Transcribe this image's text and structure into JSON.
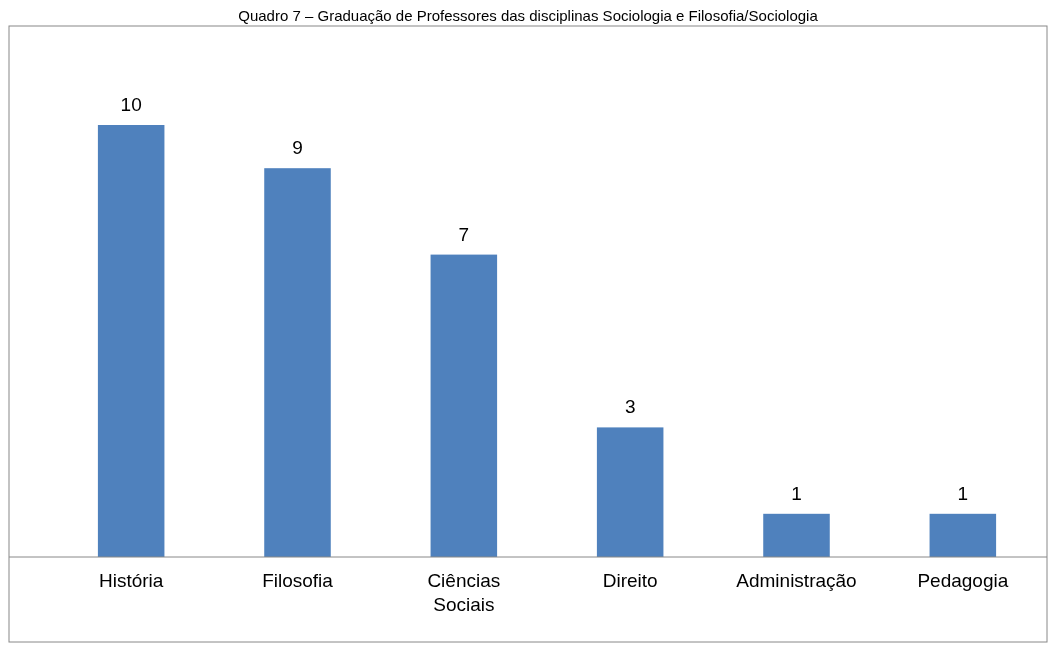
{
  "chart_data": {
    "type": "bar",
    "title": "Quadro 7 – Graduação de Professores das disciplinas Sociologia e Filosofia/Sociologia",
    "categories": [
      "História",
      "Filosofia",
      "Ciências Sociais",
      "Direito",
      "Administração",
      "Pedagogia"
    ],
    "values": [
      10,
      9,
      7,
      3,
      1,
      1
    ],
    "color": "#4f81bd",
    "data_labels": true
  }
}
